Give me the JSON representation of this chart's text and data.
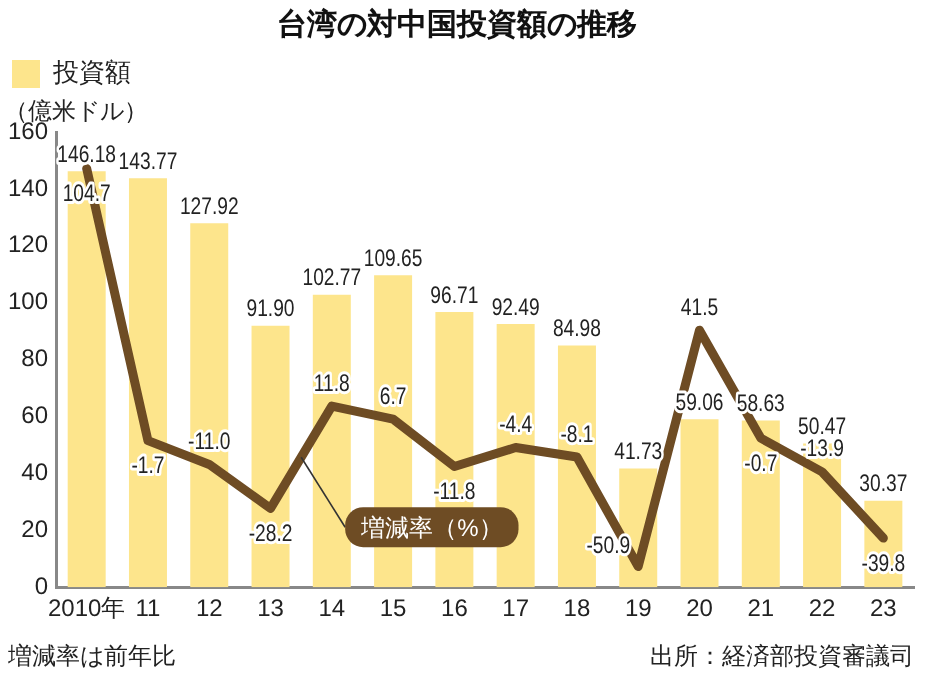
{
  "chart_data": {
    "type": "bar",
    "title": "台湾の対中国投資額の推移",
    "ylabel": "（億米ドル）",
    "categories": [
      "2010年",
      "11",
      "12",
      "13",
      "14",
      "15",
      "16",
      "17",
      "18",
      "19",
      "20",
      "21",
      "22",
      "23"
    ],
    "series": [
      {
        "name": "投資額",
        "color": "#fde58c",
        "values": [
          146.18,
          143.77,
          127.92,
          91.9,
          102.77,
          109.65,
          96.71,
          92.49,
          84.98,
          41.73,
          59.06,
          58.63,
          50.47,
          30.37
        ],
        "value_labels": [
          "146.18",
          "143.77",
          "127.92",
          "91.90",
          "102.77",
          "109.65",
          "96.71",
          "92.49",
          "84.98",
          "41.73",
          "59.06",
          "58.63",
          "50.47",
          "30.37"
        ]
      },
      {
        "name": "増減率（%）",
        "type": "line",
        "axis": "y2",
        "color": "#6e4c24",
        "values": [
          104.7,
          -1.7,
          -11.0,
          -28.2,
          11.8,
          6.7,
          -11.8,
          -4.4,
          -8.1,
          -50.9,
          41.5,
          -0.7,
          -13.9,
          -39.8
        ],
        "value_labels": [
          "104.7",
          "-1.7",
          "-11.0",
          "-28.2",
          "11.8",
          "6.7",
          "-11.8",
          "-4.4",
          "-8.1",
          "-50.9",
          "41.5",
          "-0.7",
          "-13.9",
          "-39.8"
        ]
      }
    ],
    "ylim": [
      0,
      160
    ],
    "yticks": [
      0,
      20,
      40,
      60,
      80,
      100,
      120,
      140,
      160
    ],
    "y2lim": [
      -59,
      119
    ],
    "tick_labels": "xy",
    "grid": false,
    "legend": "top left",
    "marker": "none",
    "line_style": "solid",
    "annotations": [
      "増減率は前年比",
      "出所：経済部投資審議司"
    ]
  }
}
